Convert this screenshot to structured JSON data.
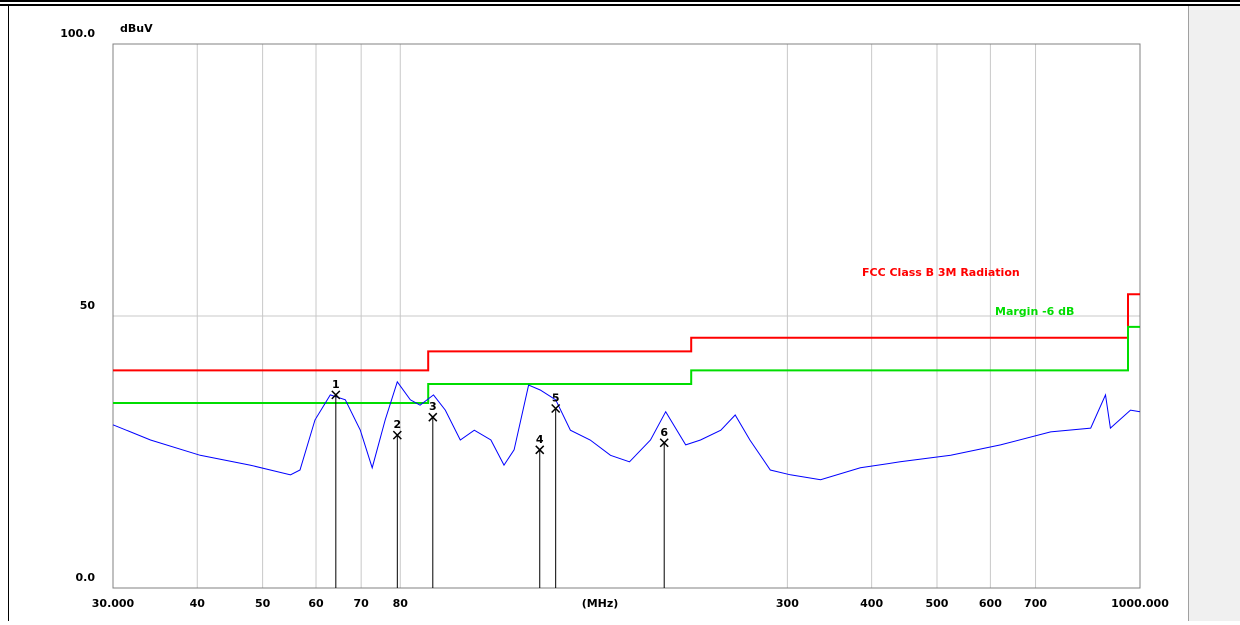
{
  "chart_data": {
    "type": "line",
    "y_unit": "dBuV",
    "x_label": "(MHz)",
    "log_x": true,
    "grid": true,
    "xlim": [
      30,
      1000
    ],
    "ylim": [
      0,
      100
    ],
    "xticks": [
      {
        "value": 30,
        "label": "30.000"
      },
      40,
      50,
      60,
      70,
      80,
      300,
      400,
      500,
      600,
      700,
      {
        "value": 1000,
        "label": "1000.000"
      }
    ],
    "yticks": [
      {
        "value": 0,
        "label": "0.0"
      },
      50,
      {
        "value": 100,
        "label": "100.0"
      }
    ],
    "series": [
      {
        "name": "FCC Class B 3M Radiation",
        "color": "#ff0000",
        "x": [
          30,
          88,
          88,
          216,
          216,
          960,
          960,
          1000
        ],
        "values": [
          40,
          40,
          43.5,
          43.5,
          46,
          46,
          54,
          54
        ]
      },
      {
        "name": "Margin -6 dB",
        "color": "#00dd00",
        "x": [
          30,
          88,
          88,
          216,
          216,
          960,
          960,
          1000
        ],
        "values": [
          34,
          34,
          37.5,
          37.5,
          40,
          40,
          48,
          48
        ]
      },
      {
        "color": "#0000ff",
        "x": [
          30,
          34.1,
          40.4,
          47.9,
          55,
          56.8,
          59.8,
          63,
          66.3,
          69.8,
          72.7,
          76,
          79.2,
          82.8,
          85.6,
          89.6,
          93.3,
          98.2,
          103,
          109,
          114,
          118,
          124,
          129,
          136,
          143,
          153,
          164,
          175,
          188,
          198,
          212,
          223,
          239,
          251,
          264,
          283,
          303,
          336,
          385,
          441,
          524,
          621,
          737,
          845,
          889,
          904,
          968,
          1000
        ],
        "values": [
          30,
          27.2,
          24.4,
          22.6,
          20.8,
          21.7,
          30.9,
          35.5,
          34.6,
          29,
          22.1,
          30.9,
          37.9,
          34.6,
          33.6,
          35.5,
          32.7,
          27.2,
          29,
          27.2,
          22.6,
          25.4,
          37.3,
          36.4,
          34.6,
          29,
          27.2,
          24.4,
          23.2,
          27.2,
          32.4,
          26.3,
          27.2,
          29,
          31.8,
          27.2,
          21.7,
          20.8,
          19.9,
          22.1,
          23.2,
          24.4,
          26.3,
          28.7,
          29.4,
          35.5,
          29.4,
          32.7,
          32.4
        ]
      }
    ],
    "markers": {
      "labels": [
        "1",
        "2",
        "3",
        "4",
        "5",
        "6"
      ],
      "x": [
        64.2,
        79.2,
        89.4,
        128.8,
        136,
        197
      ],
      "values": [
        35.5,
        28.1,
        31.4,
        25.4,
        33,
        26.7
      ]
    }
  }
}
